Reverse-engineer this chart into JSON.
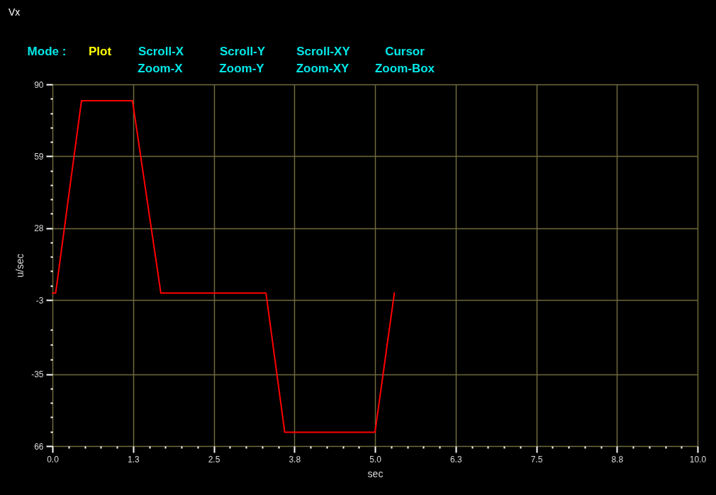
{
  "chart_data": {
    "type": "line",
    "title": "Vx",
    "xlabel": "sec",
    "ylabel": "u/sec",
    "annotations": [
      "Mode :",
      "Plot",
      "Scroll-X",
      "Scroll-Y",
      "Scroll-XY",
      "Cursor",
      "Zoom-X",
      "Zoom-Y",
      "Zoom-XY",
      "Zoom-Box"
    ],
    "x": [
      0,
      0.05,
      0.45,
      1.24,
      1.68,
      3.31,
      3.6,
      5.0,
      5.3
    ],
    "series": [
      {
        "color": "#ff0000",
        "values": [
          0,
          0,
          83,
          83,
          0,
          0,
          -60,
          -60,
          0
        ]
      }
    ],
    "xlim": [
      0,
      10
    ],
    "xticks": [
      {
        "value": 0,
        "label": "0.0"
      },
      {
        "value": 0.25,
        "label": null
      },
      {
        "value": 0.5,
        "label": null
      },
      {
        "value": 0.75,
        "label": null
      },
      {
        "value": 1.0,
        "label": null
      },
      {
        "value": 1.25,
        "label": "1.3"
      },
      {
        "value": 1.5,
        "label": null
      },
      {
        "value": 1.75,
        "label": null
      },
      {
        "value": 2.0,
        "label": null
      },
      {
        "value": 2.25,
        "label": null
      },
      2.5,
      {
        "value": 2.75,
        "label": null
      },
      {
        "value": 3.0,
        "label": null
      },
      {
        "value": 3.25,
        "label": null
      },
      {
        "value": 3.5,
        "label": null
      },
      {
        "value": 3.75,
        "label": "3.8"
      },
      {
        "value": 4.0,
        "label": null
      },
      {
        "value": 4.25,
        "label": null
      },
      {
        "value": 4.5,
        "label": null
      },
      {
        "value": 4.75,
        "label": null
      },
      {
        "value": 5,
        "label": "5.0"
      },
      {
        "value": 5.25,
        "label": null
      },
      {
        "value": 5.5,
        "label": null
      },
      {
        "value": 5.75,
        "label": null
      },
      {
        "value": 6.0,
        "label": null
      },
      {
        "value": 6.25,
        "label": "6.3"
      },
      {
        "value": 6.5,
        "label": null
      },
      {
        "value": 6.75,
        "label": null
      },
      {
        "value": 7.0,
        "label": null
      },
      {
        "value": 7.25,
        "label": null
      },
      7.5,
      {
        "value": 7.75,
        "label": null
      },
      {
        "value": 8.0,
        "label": null
      },
      {
        "value": 8.25,
        "label": null
      },
      {
        "value": 8.5,
        "label": null
      },
      {
        "value": 8.75,
        "label": "8.8"
      },
      {
        "value": 9.0,
        "label": null
      },
      {
        "value": 9.25,
        "label": null
      },
      {
        "value": 9.5,
        "label": null
      },
      {
        "value": 9.75,
        "label": null
      },
      {
        "value": 10,
        "label": "10.0"
      }
    ],
    "ylim": [
      -66,
      90
    ],
    "yticks": [
      90,
      {
        "value": 83.8,
        "label": null
      },
      {
        "value": 77.6,
        "label": null
      },
      {
        "value": 71.4,
        "label": null
      },
      {
        "value": 65.2,
        "label": null
      },
      59,
      {
        "value": 52.8,
        "label": null
      },
      {
        "value": 46.6,
        "label": null
      },
      {
        "value": 40.4,
        "label": null
      },
      {
        "value": 34.2,
        "label": null
      },
      28,
      {
        "value": 21.8,
        "label": null
      },
      {
        "value": 15.6,
        "label": null
      },
      {
        "value": 9.4,
        "label": null
      },
      {
        "value": 3.2,
        "label": null
      },
      -3,
      {
        "value": -15.8,
        "label": null
      },
      {
        "value": -22.2,
        "label": null
      },
      {
        "value": -28.6,
        "label": null
      },
      -35,
      {
        "value": -41.2,
        "label": null
      },
      {
        "value": -47.4,
        "label": null
      },
      {
        "value": -53.6,
        "label": null
      },
      {
        "value": -59.8,
        "label": null
      },
      {
        "value": -66,
        "label": "66"
      }
    ],
    "grid": true,
    "marker": "none",
    "line_style": "solid"
  }
}
